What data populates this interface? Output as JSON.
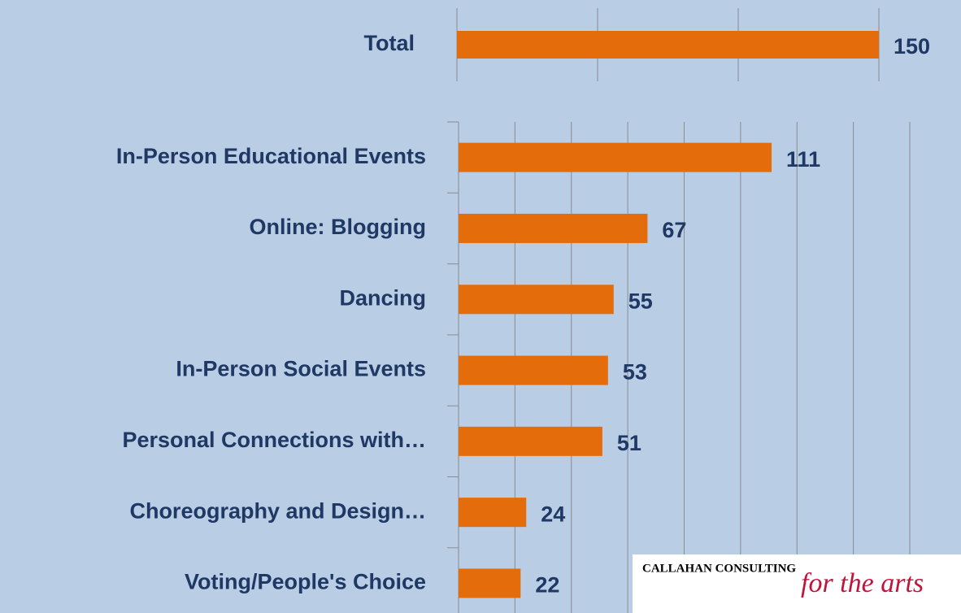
{
  "chart_data": [
    {
      "type": "bar",
      "orientation": "horizontal",
      "categories": [
        "Total"
      ],
      "values": [
        150
      ],
      "color": "#e46c0a",
      "xlim": [
        0,
        150
      ],
      "xticks": [
        0,
        50,
        100,
        150
      ],
      "grid": true
    },
    {
      "type": "bar",
      "orientation": "horizontal",
      "categories": [
        "In-Person Educational Events",
        "Online: Blogging",
        "Dancing",
        "In-Person Social Events",
        "Personal Connections with…",
        "Choreography and Design…",
        "Voting/People's Choice"
      ],
      "values": [
        111,
        67,
        55,
        53,
        51,
        24,
        22
      ],
      "color": "#e46c0a",
      "xlim": [
        0,
        160
      ],
      "xticks": [
        0,
        20,
        40,
        60,
        80,
        100,
        120,
        140,
        160
      ],
      "grid": true
    }
  ],
  "logo": {
    "name": "CALLAHAN CONSULTING",
    "tagline": "for the arts"
  }
}
